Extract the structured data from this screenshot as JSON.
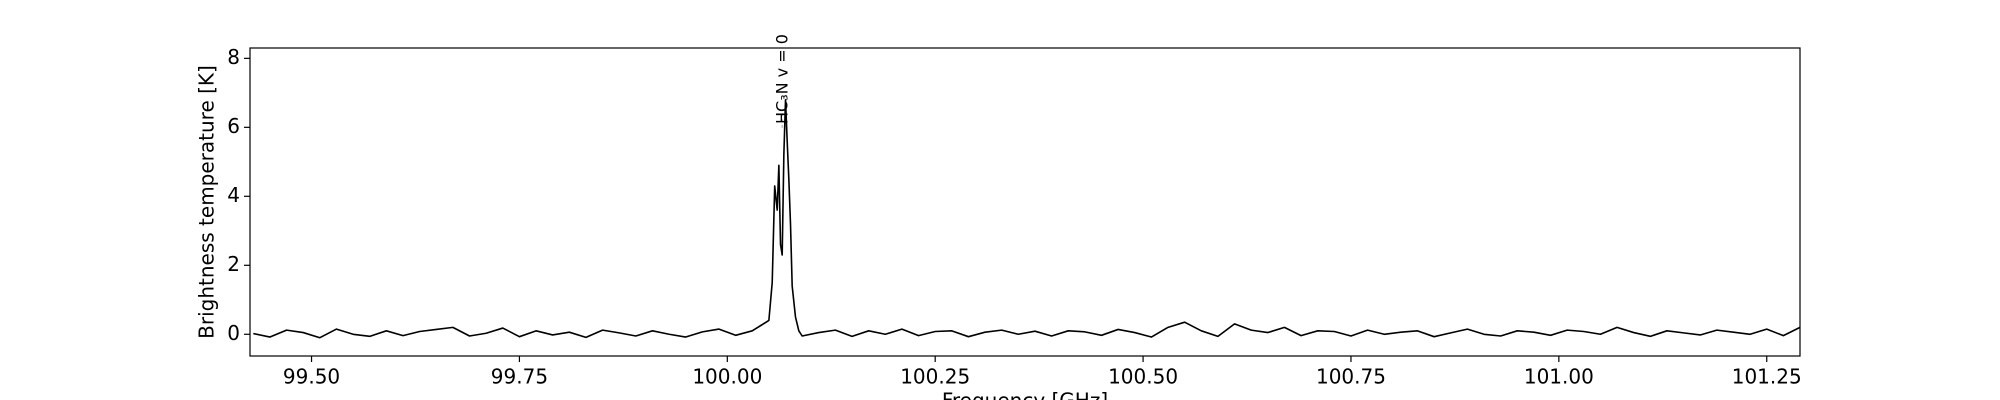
{
  "chart_data": {
    "type": "line",
    "xlabel": "Frequency [GHz]",
    "ylabel": "Brightness temperature [K]",
    "annotation": {
      "text": "HC₃N v = 0",
      "x": 100.066
    },
    "x": [
      99.43,
      99.45,
      99.47,
      99.49,
      99.51,
      99.53,
      99.55,
      99.57,
      99.59,
      99.61,
      99.63,
      99.65,
      99.67,
      99.69,
      99.71,
      99.73,
      99.75,
      99.77,
      99.79,
      99.81,
      99.83,
      99.85,
      99.87,
      99.89,
      99.91,
      99.93,
      99.95,
      99.97,
      99.99,
      100.01,
      100.03,
      100.05,
      100.054,
      100.057,
      100.06,
      100.062,
      100.064,
      100.066,
      100.068,
      100.07,
      100.072,
      100.074,
      100.076,
      100.078,
      100.082,
      100.086,
      100.09,
      100.11,
      100.13,
      100.15,
      100.17,
      100.19,
      100.21,
      100.23,
      100.25,
      100.27,
      100.29,
      100.31,
      100.33,
      100.35,
      100.37,
      100.39,
      100.41,
      100.43,
      100.45,
      100.47,
      100.49,
      100.51,
      100.53,
      100.55,
      100.57,
      100.59,
      100.61,
      100.63,
      100.65,
      100.67,
      100.69,
      100.71,
      100.73,
      100.75,
      100.77,
      100.79,
      100.81,
      100.83,
      100.85,
      100.87,
      100.89,
      100.91,
      100.93,
      100.95,
      100.97,
      100.99,
      101.01,
      101.03,
      101.05,
      101.07,
      101.09,
      101.11,
      101.13,
      101.15,
      101.17,
      101.19,
      101.21,
      101.23,
      101.25,
      101.27,
      101.29
    ],
    "series": [
      {
        "name": "spectrum",
        "color": "#000000",
        "values": [
          0.02,
          -0.08,
          0.12,
          0.05,
          -0.1,
          0.15,
          0.0,
          -0.06,
          0.1,
          -0.04,
          0.08,
          0.14,
          0.2,
          -0.05,
          0.03,
          0.18,
          -0.07,
          0.1,
          -0.02,
          0.06,
          -0.09,
          0.12,
          0.04,
          -0.05,
          0.1,
          0.0,
          -0.08,
          0.07,
          0.15,
          -0.03,
          0.1,
          0.4,
          1.5,
          4.3,
          3.6,
          4.9,
          2.6,
          2.3,
          5.2,
          6.8,
          5.6,
          4.5,
          3.2,
          1.4,
          0.5,
          0.1,
          -0.05,
          0.05,
          0.12,
          -0.06,
          0.1,
          0.0,
          0.15,
          -0.04,
          0.08,
          0.1,
          -0.07,
          0.06,
          0.12,
          0.0,
          0.09,
          -0.05,
          0.1,
          0.07,
          -0.03,
          0.14,
          0.05,
          -0.08,
          0.2,
          0.35,
          0.1,
          -0.06,
          0.3,
          0.12,
          0.05,
          0.2,
          -0.04,
          0.1,
          0.08,
          -0.05,
          0.12,
          0.0,
          0.06,
          0.1,
          -0.07,
          0.04,
          0.15,
          0.0,
          -0.05,
          0.1,
          0.06,
          -0.03,
          0.12,
          0.08,
          0.0,
          0.2,
          0.05,
          -0.06,
          0.1,
          0.04,
          -0.02,
          0.12,
          0.06,
          0.0,
          0.15,
          -0.04,
          0.2
        ]
      }
    ],
    "xlim": [
      99.426,
      101.29
    ],
    "ylim": [
      -0.63,
      8.3
    ],
    "xticks": [
      {
        "value": 99.5,
        "label": "99.50"
      },
      {
        "value": 99.75,
        "label": "99.75"
      },
      {
        "value": 100.0,
        "label": "100.00"
      },
      {
        "value": 100.25,
        "label": "100.25"
      },
      {
        "value": 100.5,
        "label": "100.50"
      },
      {
        "value": 100.75,
        "label": "100.75"
      },
      {
        "value": 101.0,
        "label": "101.00"
      },
      {
        "value": 101.25,
        "label": "101.25"
      }
    ],
    "yticks": [
      0,
      2,
      4,
      6,
      8
    ],
    "grid": false
  }
}
